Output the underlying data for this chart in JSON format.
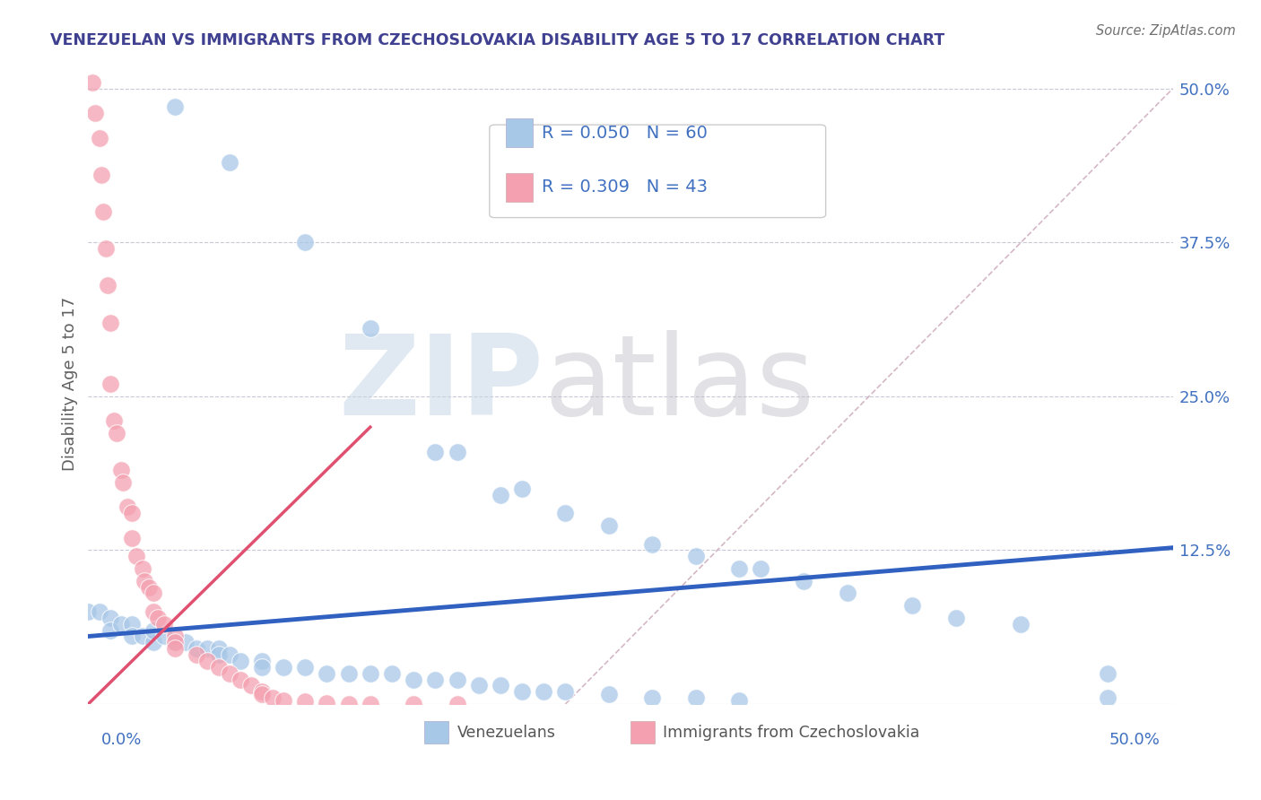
{
  "title": "VENEZUELAN VS IMMIGRANTS FROM CZECHOSLOVAKIA DISABILITY AGE 5 TO 17 CORRELATION CHART",
  "source": "Source: ZipAtlas.com",
  "ylabel": "Disability Age 5 to 17",
  "legend_blue_R": "R = 0.050",
  "legend_blue_N": "N = 60",
  "legend_pink_R": "R = 0.309",
  "legend_pink_N": "N = 43",
  "legend_label_blue": "Venezuelans",
  "legend_label_pink": "Immigrants from Czechoslovakia",
  "blue_scatter_color": "#a8c8e8",
  "pink_scatter_color": "#f4a0b0",
  "blue_line_color": "#3060c0",
  "pink_line_color": "#e05070",
  "diag_line_color": "#d0b0c0",
  "title_color": "#404090",
  "axis_label_color": "#4070c0",
  "ylabel_color": "#606060",
  "xlim": [
    0.0,
    0.5
  ],
  "ylim": [
    0.0,
    0.52
  ],
  "blue_line_x0": 0.0,
  "blue_line_y0": 0.055,
  "blue_line_x1": 0.5,
  "blue_line_y1": 0.127,
  "pink_line_x0": 0.0,
  "pink_line_y0": 0.0,
  "pink_line_x1": 0.13,
  "pink_line_y1": 0.225,
  "diag_line_x0": 0.22,
  "diag_line_y0": 0.0,
  "diag_line_x1": 0.5,
  "diag_line_y1": 0.5,
  "venezuelan_x": [
    0.04,
    0.065,
    0.1,
    0.13,
    0.16,
    0.17,
    0.19,
    0.2,
    0.22,
    0.24,
    0.26,
    0.28,
    0.3,
    0.31,
    0.33,
    0.35,
    0.38,
    0.4,
    0.43,
    0.47,
    0.0,
    0.005,
    0.01,
    0.01,
    0.015,
    0.02,
    0.02,
    0.025,
    0.03,
    0.03,
    0.035,
    0.04,
    0.045,
    0.05,
    0.055,
    0.06,
    0.06,
    0.065,
    0.07,
    0.08,
    0.08,
    0.09,
    0.1,
    0.11,
    0.12,
    0.13,
    0.14,
    0.15,
    0.16,
    0.17,
    0.18,
    0.19,
    0.2,
    0.21,
    0.22,
    0.24,
    0.26,
    0.28,
    0.3,
    0.47
  ],
  "venezuelan_y": [
    0.485,
    0.44,
    0.375,
    0.305,
    0.205,
    0.205,
    0.17,
    0.175,
    0.155,
    0.145,
    0.13,
    0.12,
    0.11,
    0.11,
    0.1,
    0.09,
    0.08,
    0.07,
    0.065,
    0.025,
    0.075,
    0.075,
    0.07,
    0.06,
    0.065,
    0.065,
    0.055,
    0.055,
    0.05,
    0.06,
    0.055,
    0.05,
    0.05,
    0.045,
    0.045,
    0.045,
    0.04,
    0.04,
    0.035,
    0.035,
    0.03,
    0.03,
    0.03,
    0.025,
    0.025,
    0.025,
    0.025,
    0.02,
    0.02,
    0.02,
    0.015,
    0.015,
    0.01,
    0.01,
    0.01,
    0.008,
    0.005,
    0.005,
    0.003,
    0.005
  ],
  "czech_x": [
    0.002,
    0.003,
    0.005,
    0.006,
    0.007,
    0.008,
    0.009,
    0.01,
    0.01,
    0.012,
    0.013,
    0.015,
    0.016,
    0.018,
    0.02,
    0.02,
    0.022,
    0.025,
    0.026,
    0.028,
    0.03,
    0.03,
    0.032,
    0.035,
    0.04,
    0.04,
    0.04,
    0.05,
    0.055,
    0.06,
    0.065,
    0.07,
    0.075,
    0.08,
    0.08,
    0.085,
    0.09,
    0.1,
    0.11,
    0.12,
    0.13,
    0.15,
    0.17
  ],
  "czech_y": [
    0.505,
    0.48,
    0.46,
    0.43,
    0.4,
    0.37,
    0.34,
    0.31,
    0.26,
    0.23,
    0.22,
    0.19,
    0.18,
    0.16,
    0.155,
    0.135,
    0.12,
    0.11,
    0.1,
    0.095,
    0.09,
    0.075,
    0.07,
    0.065,
    0.055,
    0.05,
    0.045,
    0.04,
    0.035,
    0.03,
    0.025,
    0.02,
    0.015,
    0.01,
    0.008,
    0.005,
    0.003,
    0.002,
    0.001,
    0.0,
    0.0,
    0.0,
    0.0
  ]
}
